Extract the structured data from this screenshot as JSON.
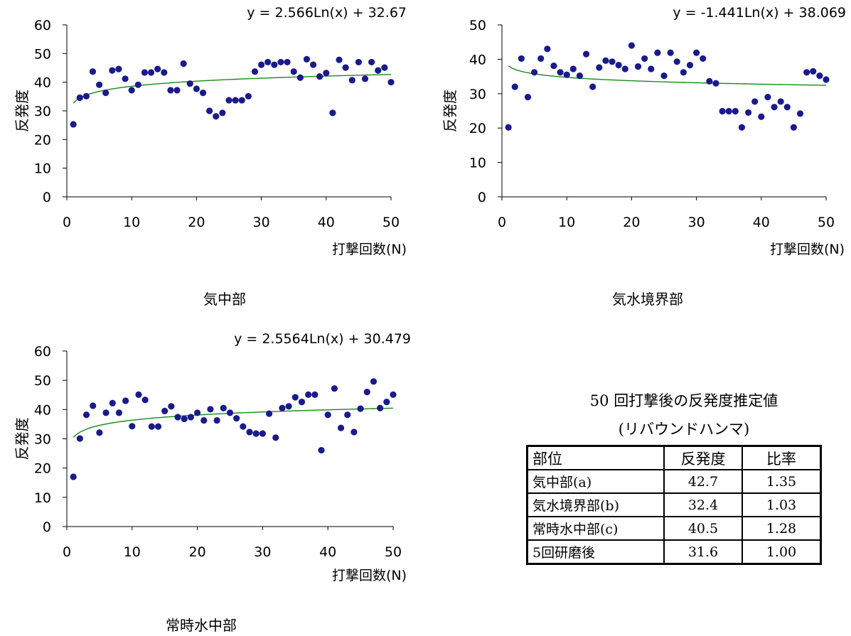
{
  "chart_data": [
    {
      "type": "scatter",
      "title": "気中部",
      "equation": "y = 2.566Ln(x) + 32.67",
      "xlabel": "打撃回数(N)",
      "ylabel": "反発度",
      "xlim": [
        0,
        50
      ],
      "ylim": [
        0,
        60
      ],
      "xticks": [
        "0",
        "10",
        "20",
        "30",
        "40",
        "50"
      ],
      "yticks": [
        "0",
        "10",
        "20",
        "30",
        "40",
        "50",
        "60"
      ],
      "trend": {
        "type": "log",
        "a": 2.566,
        "b": 32.67
      },
      "x": [
        1,
        2,
        3,
        4,
        5,
        6,
        7,
        8,
        9,
        10,
        11,
        12,
        13,
        14,
        15,
        16,
        17,
        18,
        19,
        20,
        21,
        22,
        23,
        24,
        25,
        26,
        27,
        28,
        29,
        30,
        31,
        32,
        33,
        34,
        35,
        36,
        37,
        38,
        39,
        40,
        41,
        42,
        43,
        44,
        45,
        46,
        47,
        48,
        49,
        50
      ],
      "values": [
        25.3,
        34.6,
        35.1,
        43.7,
        39.1,
        36.3,
        44.1,
        44.6,
        41.2,
        37.2,
        39.1,
        43.4,
        43.4,
        44.6,
        43.4,
        37.2,
        37.2,
        46.5,
        39.5,
        37.7,
        36.3,
        30.0,
        28.1,
        29.3,
        33.7,
        33.7,
        33.7,
        35.1,
        43.7,
        46.1,
        47.0,
        46.1,
        47.0,
        47.0,
        43.7,
        41.6,
        48.0,
        46.1,
        42.0,
        43.2,
        29.3,
        47.8,
        45.1,
        40.7,
        47.0,
        41.2,
        47.0,
        44.1,
        45.1,
        40.0
      ]
    },
    {
      "type": "scatter",
      "title": "気水境界部",
      "equation": "y = -1.441Ln(x) + 38.069",
      "xlabel": "打撃回数(N)",
      "ylabel": "反発度",
      "xlim": [
        0,
        50
      ],
      "ylim": [
        0,
        50
      ],
      "xticks": [
        "0",
        "10",
        "20",
        "30",
        "40",
        "50"
      ],
      "yticks": [
        "0",
        "10",
        "20",
        "30",
        "40",
        "50"
      ],
      "trend": {
        "type": "log",
        "a": -1.441,
        "b": 38.069
      },
      "x": [
        1,
        2,
        3,
        4,
        5,
        6,
        7,
        8,
        9,
        10,
        11,
        12,
        13,
        14,
        15,
        16,
        17,
        18,
        19,
        20,
        21,
        22,
        23,
        24,
        25,
        26,
        27,
        28,
        29,
        30,
        31,
        32,
        33,
        34,
        35,
        36,
        37,
        38,
        39,
        40,
        41,
        42,
        43,
        44,
        45,
        46,
        47,
        48,
        49,
        50
      ],
      "values": [
        20.2,
        32.0,
        40.2,
        29.0,
        36.2,
        40.2,
        43.0,
        38.1,
        36.2,
        35.5,
        37.2,
        35.2,
        41.5,
        32.0,
        37.6,
        39.6,
        39.3,
        38.3,
        37.2,
        44.0,
        37.9,
        40.2,
        37.2,
        41.9,
        35.2,
        41.9,
        39.3,
        36.2,
        38.3,
        41.9,
        40.2,
        33.6,
        33.0,
        24.9,
        24.9,
        24.9,
        20.2,
        24.5,
        27.7,
        23.3,
        29.0,
        26.1,
        27.7,
        26.1,
        20.2,
        24.2,
        36.2,
        36.5,
        35.2,
        34.1
      ]
    },
    {
      "type": "scatter",
      "title": "常時水中部",
      "equation": "y = 2.5564Ln(x) + 30.479",
      "xlabel": "打撃回数(N)",
      "ylabel": "反発度",
      "xlim": [
        0,
        50
      ],
      "ylim": [
        0,
        60
      ],
      "xticks": [
        "0",
        "10",
        "20",
        "30",
        "40",
        "50"
      ],
      "yticks": [
        "0",
        "10",
        "20",
        "30",
        "40",
        "50",
        "60"
      ],
      "trend": {
        "type": "log",
        "a": 2.5564,
        "b": 30.479
      },
      "x": [
        1,
        2,
        3,
        4,
        5,
        6,
        7,
        8,
        9,
        10,
        11,
        12,
        13,
        14,
        15,
        16,
        17,
        18,
        19,
        20,
        21,
        22,
        23,
        24,
        25,
        26,
        27,
        28,
        29,
        30,
        31,
        32,
        33,
        34,
        35,
        36,
        37,
        38,
        39,
        40,
        41,
        42,
        43,
        44,
        45,
        46,
        47,
        48,
        49,
        50
      ],
      "values": [
        17.0,
        30.1,
        38.2,
        41.3,
        32.1,
        38.9,
        42.2,
        38.9,
        43.0,
        34.3,
        45.1,
        43.3,
        34.2,
        34.2,
        39.5,
        41.1,
        37.4,
        36.8,
        37.4,
        38.9,
        36.3,
        40.1,
        36.3,
        40.5,
        38.9,
        37.0,
        34.2,
        32.3,
        31.8,
        31.8,
        38.6,
        30.4,
        40.5,
        41.1,
        44.2,
        42.6,
        45.1,
        45.1,
        26.1,
        38.2,
        47.2,
        33.7,
        38.2,
        32.3,
        40.3,
        46.0,
        49.6,
        40.5,
        42.6,
        45.1
      ]
    }
  ],
  "captions": {
    "chart1": "気中部",
    "chart2": "気水境界部",
    "chart3": "常時水中部"
  },
  "table": {
    "title_line1": "50 回打撃後の反発度推定値",
    "title_line2": "(リバウンドハンマ)",
    "headers": [
      "部位",
      "反発度",
      "比率"
    ],
    "rows": [
      [
        "気中部(a)",
        "42.7",
        "1.35"
      ],
      [
        "気水境界部(b)",
        "32.4",
        "1.03"
      ],
      [
        "常時水中部(c)",
        "40.5",
        "1.28"
      ],
      [
        "5回研磨後",
        "31.6",
        "1.00"
      ]
    ]
  },
  "colors": {
    "marker": "#1a1a8c",
    "trendline": "#1a8a1a",
    "axis": "#000000"
  }
}
